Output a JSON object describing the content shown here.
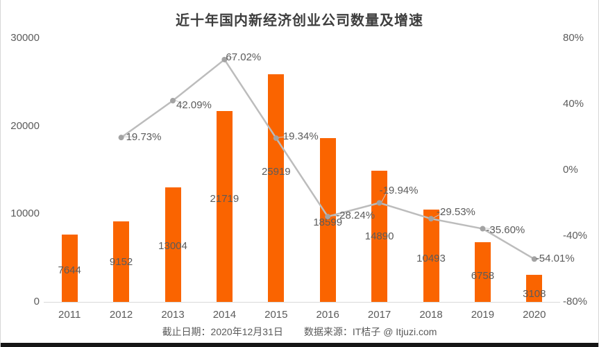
{
  "footer": {
    "date": "截止日期：2020年12月31日",
    "source": "数据来源：IT桔子 @ Itjuzi.com"
  },
  "colors": {
    "bar": "#fa6400",
    "line": "#bcbcbc",
    "point": "#a3a3a3",
    "leader": "#c9c9c9",
    "label_text": "#5b5b5b",
    "axis_text": "#5b5b5b",
    "title_text": "#3d3d3d",
    "axis_line": "#d9d9d9",
    "footer_text": "#595959",
    "card_border": "#d6d6d6",
    "bottom_bar": "#151515",
    "background": "#ffffff"
  },
  "chart_data": {
    "type": "bar+line",
    "title": "近十年国内新经济创业公司数量及增速",
    "categories": [
      "2011",
      "2012",
      "2013",
      "2014",
      "2015",
      "2016",
      "2017",
      "2018",
      "2019",
      "2020"
    ],
    "series": [
      {
        "id": "company-count-bars",
        "type": "bar",
        "axis": "left",
        "values": [
          7644,
          9152,
          13004,
          21719,
          25919,
          18599,
          14890,
          10493,
          6758,
          3108
        ],
        "labels": [
          "7644",
          "9152",
          "13004",
          "21719",
          "25919",
          "18599",
          "14890",
          "10493",
          "6758",
          "3108"
        ],
        "label_dy": [
          3,
          1,
          2,
          -10,
          -23,
          4,
          0,
          4,
          6,
          9
        ]
      },
      {
        "id": "growth-rate-line",
        "type": "line",
        "axis": "right",
        "categories": [
          "2012",
          "2013",
          "2014",
          "2015",
          "2016",
          "2017",
          "2018",
          "2019",
          "2020"
        ],
        "values": [
          19.73,
          42.09,
          67.02,
          19.34,
          -28.24,
          -19.94,
          -29.53,
          -35.6,
          -54.01
        ],
        "labels": [
          "19.73%",
          "42.09%",
          "67.02%",
          "19.34%",
          "-28.24%",
          "-19.94%",
          "-29.53%",
          "-35.60%",
          "-54.01%"
        ],
        "label_dx": [
          7,
          5,
          2,
          10,
          12,
          0,
          8,
          5,
          2
        ],
        "label_dy": [
          0,
          7,
          -3,
          -2,
          -1,
          -17,
          -9,
          2,
          0
        ]
      }
    ],
    "axes": {
      "left": {
        "min": 0,
        "max": 30000,
        "tick_values": [
          0,
          10000,
          20000,
          30000
        ],
        "tick_labels": [
          "0",
          "10000",
          "20000",
          "30000"
        ]
      },
      "right": {
        "min": -80,
        "max": 80,
        "tick_values": [
          -80,
          -40,
          0,
          40,
          80
        ],
        "tick_labels": [
          "-80%",
          "-40%",
          "0%",
          "40%",
          "80%"
        ]
      }
    },
    "grid": false,
    "legend": false
  }
}
